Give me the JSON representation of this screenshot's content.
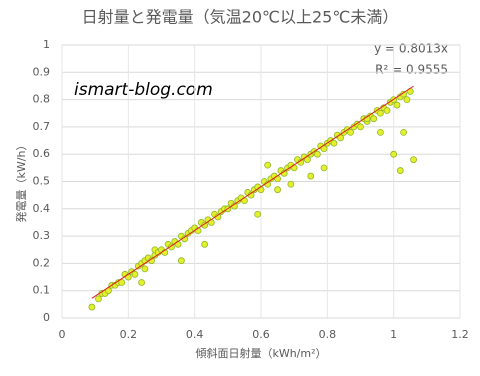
{
  "chart_data": {
    "type": "scatter",
    "title": "日射量と発電量（気温20℃以上25℃未満）",
    "xlabel": "傾斜面日射量（kWh/m²）",
    "ylabel": "発電量（kW/h）",
    "annotation": "ismart-blog.com",
    "x": [
      0.09,
      0.11,
      0.12,
      0.13,
      0.14,
      0.15,
      0.16,
      0.17,
      0.18,
      0.19,
      0.2,
      0.21,
      0.22,
      0.23,
      0.24,
      0.25,
      0.25,
      0.26,
      0.27,
      0.28,
      0.28,
      0.29,
      0.3,
      0.31,
      0.32,
      0.33,
      0.34,
      0.35,
      0.36,
      0.37,
      0.38,
      0.39,
      0.4,
      0.41,
      0.42,
      0.43,
      0.44,
      0.45,
      0.46,
      0.47,
      0.48,
      0.49,
      0.5,
      0.51,
      0.52,
      0.53,
      0.54,
      0.55,
      0.56,
      0.57,
      0.58,
      0.59,
      0.6,
      0.61,
      0.62,
      0.63,
      0.64,
      0.65,
      0.66,
      0.67,
      0.68,
      0.69,
      0.7,
      0.71,
      0.72,
      0.73,
      0.74,
      0.75,
      0.76,
      0.77,
      0.78,
      0.79,
      0.8,
      0.81,
      0.82,
      0.83,
      0.84,
      0.85,
      0.86,
      0.87,
      0.88,
      0.89,
      0.9,
      0.91,
      0.92,
      0.93,
      0.94,
      0.95,
      0.96,
      0.97,
      0.98,
      0.99,
      1.0,
      1.01,
      1.02,
      1.03,
      1.04,
      1.05,
      0.36,
      0.43,
      0.59,
      0.62,
      0.69,
      0.75,
      0.79,
      0.92,
      0.96,
      1.0,
      1.02,
      1.06,
      1.03,
      0.24,
      0.65
    ],
    "y": [
      0.04,
      0.07,
      0.09,
      0.09,
      0.1,
      0.12,
      0.12,
      0.13,
      0.13,
      0.16,
      0.15,
      0.17,
      0.16,
      0.19,
      0.2,
      0.21,
      0.18,
      0.22,
      0.21,
      0.23,
      0.25,
      0.24,
      0.25,
      0.24,
      0.27,
      0.26,
      0.28,
      0.27,
      0.3,
      0.29,
      0.31,
      0.32,
      0.33,
      0.32,
      0.35,
      0.34,
      0.36,
      0.35,
      0.38,
      0.37,
      0.39,
      0.4,
      0.4,
      0.42,
      0.41,
      0.43,
      0.44,
      0.43,
      0.46,
      0.45,
      0.47,
      0.48,
      0.47,
      0.5,
      0.49,
      0.51,
      0.52,
      0.51,
      0.54,
      0.53,
      0.55,
      0.56,
      0.55,
      0.58,
      0.57,
      0.59,
      0.58,
      0.6,
      0.61,
      0.6,
      0.63,
      0.62,
      0.64,
      0.65,
      0.64,
      0.67,
      0.66,
      0.68,
      0.69,
      0.68,
      0.7,
      0.71,
      0.7,
      0.73,
      0.72,
      0.74,
      0.73,
      0.76,
      0.75,
      0.77,
      0.76,
      0.79,
      0.8,
      0.78,
      0.81,
      0.82,
      0.8,
      0.83,
      0.21,
      0.27,
      0.38,
      0.56,
      0.49,
      0.52,
      0.55,
      0.73,
      0.68,
      0.6,
      0.54,
      0.58,
      0.68,
      0.13,
      0.47
    ],
    "color": "#e4f02c",
    "edge_color": "#8fb62a",
    "trendline": {
      "slope": 0.8013,
      "color": "#e0201c",
      "label": "y = 0.8013x",
      "r2_label": "R² = 0.9555"
    },
    "xlim": [
      0,
      1.2
    ],
    "xticks": [
      0,
      0.2,
      0.4,
      0.6,
      0.8,
      1,
      1.2
    ],
    "ylim": [
      0,
      1
    ],
    "yticks": [
      0,
      0.1,
      0.2,
      0.3,
      0.4,
      0.5,
      0.6,
      0.7,
      0.8,
      0.9,
      1
    ],
    "grid": true
  }
}
